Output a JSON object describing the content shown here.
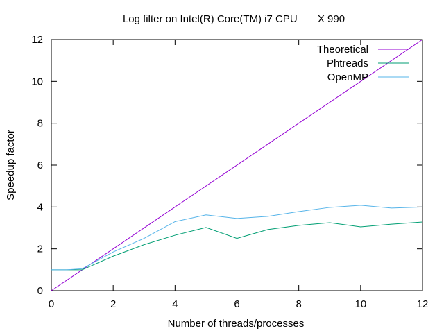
{
  "chart_data": {
    "type": "line",
    "title": "Log filter on Intel(R) Core(TM) i7 CPU       X 990",
    "xlabel": "Number of threads/processes",
    "ylabel": "Speedup factor",
    "xlim": [
      0,
      12
    ],
    "ylim": [
      0,
      12
    ],
    "xticks": [
      0,
      2,
      4,
      6,
      8,
      10,
      12
    ],
    "yticks": [
      0,
      2,
      4,
      6,
      8,
      10,
      12
    ],
    "grid": false,
    "legend_position": "top-right",
    "series": [
      {
        "name": "Theoretical",
        "color": "#9400d3",
        "x": [
          0,
          12
        ],
        "y": [
          0,
          12
        ]
      },
      {
        "name": "Phtreads",
        "color": "#009e73",
        "x": [
          0,
          0.5,
          1,
          2,
          3,
          4,
          5,
          6,
          7,
          8,
          9,
          10,
          11,
          12
        ],
        "y": [
          1.0,
          1.0,
          1.0,
          1.65,
          2.2,
          2.65,
          3.02,
          2.5,
          2.92,
          3.12,
          3.25,
          3.05,
          3.18,
          3.28
        ]
      },
      {
        "name": "OpenMP",
        "color": "#56b4e9",
        "x": [
          0,
          0.5,
          1,
          2,
          3,
          4,
          5,
          6,
          7,
          8,
          9,
          10,
          11,
          12
        ],
        "y": [
          1.0,
          1.0,
          1.05,
          1.85,
          2.5,
          3.3,
          3.62,
          3.45,
          3.55,
          3.78,
          3.98,
          4.08,
          3.95,
          4.0
        ]
      }
    ]
  }
}
